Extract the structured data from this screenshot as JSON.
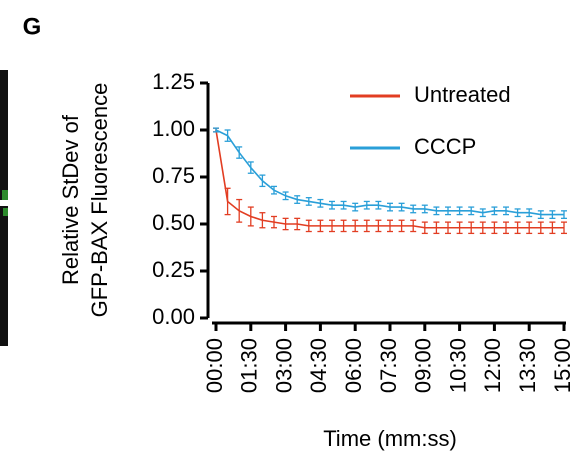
{
  "panel_label": "G",
  "chart_data": {
    "type": "line",
    "ylabel": [
      "Relative StDev of",
      "GFP-BAX Fluorescence"
    ],
    "xlabel": "Time (mm:ss)",
    "x": [
      0,
      30,
      60,
      90,
      120,
      150,
      180,
      210,
      240,
      270,
      300,
      330,
      360,
      390,
      420,
      450,
      480,
      510,
      540,
      570,
      600,
      630,
      660,
      690,
      720,
      750,
      780,
      810,
      840,
      870,
      900
    ],
    "series": [
      {
        "name": "Untreated",
        "color": "#e23d22",
        "values": [
          1.0,
          0.62,
          0.57,
          0.54,
          0.52,
          0.51,
          0.5,
          0.5,
          0.49,
          0.49,
          0.49,
          0.49,
          0.49,
          0.49,
          0.49,
          0.49,
          0.49,
          0.49,
          0.48,
          0.48,
          0.48,
          0.48,
          0.48,
          0.48,
          0.48,
          0.48,
          0.48,
          0.48,
          0.48,
          0.48,
          0.48
        ],
        "errors": [
          0.01,
          0.07,
          0.06,
          0.05,
          0.04,
          0.03,
          0.03,
          0.03,
          0.03,
          0.03,
          0.03,
          0.03,
          0.03,
          0.03,
          0.03,
          0.03,
          0.03,
          0.03,
          0.03,
          0.03,
          0.03,
          0.03,
          0.03,
          0.03,
          0.03,
          0.03,
          0.03,
          0.03,
          0.03,
          0.03,
          0.03
        ]
      },
      {
        "name": "CCCP",
        "color": "#2a9fd8",
        "values": [
          1.0,
          0.97,
          0.88,
          0.8,
          0.73,
          0.68,
          0.65,
          0.63,
          0.62,
          0.61,
          0.6,
          0.6,
          0.59,
          0.6,
          0.6,
          0.59,
          0.59,
          0.58,
          0.58,
          0.57,
          0.57,
          0.57,
          0.57,
          0.56,
          0.57,
          0.57,
          0.56,
          0.56,
          0.55,
          0.55,
          0.55
        ],
        "errors": [
          0.01,
          0.03,
          0.03,
          0.03,
          0.03,
          0.02,
          0.02,
          0.02,
          0.02,
          0.02,
          0.02,
          0.02,
          0.02,
          0.02,
          0.02,
          0.02,
          0.02,
          0.02,
          0.02,
          0.02,
          0.02,
          0.02,
          0.02,
          0.02,
          0.02,
          0.02,
          0.02,
          0.02,
          0.02,
          0.02,
          0.02
        ]
      }
    ],
    "xlim": [
      0,
      900
    ],
    "xticks": [
      {
        "value": 0,
        "label": "00:00"
      },
      {
        "value": 90,
        "label": "01:30"
      },
      {
        "value": 180,
        "label": "03:00"
      },
      {
        "value": 270,
        "label": "04:30"
      },
      {
        "value": 360,
        "label": "06:00"
      },
      {
        "value": 450,
        "label": "07:30"
      },
      {
        "value": 540,
        "label": "09:00"
      },
      {
        "value": 630,
        "label": "10:30"
      },
      {
        "value": 720,
        "label": "12:00"
      },
      {
        "value": 810,
        "label": "13:30"
      },
      {
        "value": 900,
        "label": "15:00"
      }
    ],
    "ylim": [
      0,
      1.25
    ],
    "yticks": [
      {
        "value": 0,
        "label": "0.00"
      },
      {
        "value": 0.25,
        "label": "0.25"
      },
      {
        "value": 0.5,
        "label": "0.50"
      },
      {
        "value": 0.75,
        "label": "0.75"
      },
      {
        "value": 1,
        "label": "1.00"
      },
      {
        "value": 1.25,
        "label": "1.25"
      }
    ],
    "legend": "top-right"
  }
}
